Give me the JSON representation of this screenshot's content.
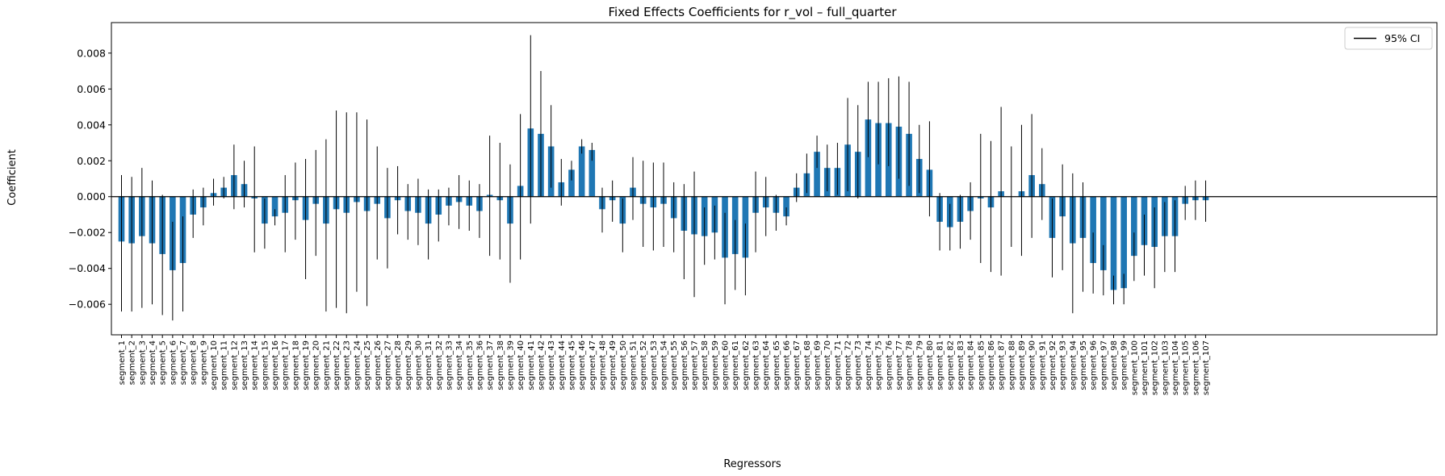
{
  "chart_data": {
    "type": "bar",
    "title": "Fixed Effects Coefficients for r_vol – full_quarter",
    "xlabel": "Regressors",
    "ylabel": "Coefficient",
    "ylim": [
      -0.0077,
      0.0097
    ],
    "yticks": [
      -0.006,
      -0.004,
      -0.002,
      0.0,
      0.002,
      0.004,
      0.006,
      0.008
    ],
    "ytick_labels": [
      "−0.006",
      "−0.004",
      "−0.002",
      "0.000",
      "0.002",
      "0.004",
      "0.006",
      "0.008"
    ],
    "grid": false,
    "zero_line": true,
    "legend": {
      "position": "top-right",
      "entries": [
        "95% CI"
      ]
    },
    "bar_color": "#1f77b4",
    "errorbar_color": "#000000",
    "categories": [
      "segment_1",
      "segment_2",
      "segment_3",
      "segment_4",
      "segment_5",
      "segment_6",
      "segment_7",
      "segment_8",
      "segment_9",
      "segment_10",
      "segment_11",
      "segment_12",
      "segment_13",
      "segment_14",
      "segment_15",
      "segment_16",
      "segment_17",
      "segment_18",
      "segment_19",
      "segment_20",
      "segment_21",
      "segment_22",
      "segment_23",
      "segment_24",
      "segment_25",
      "segment_26",
      "segment_27",
      "segment_28",
      "segment_29",
      "segment_30",
      "segment_31",
      "segment_32",
      "segment_33",
      "segment_34",
      "segment_35",
      "segment_36",
      "segment_37",
      "segment_38",
      "segment_39",
      "segment_40",
      "segment_41",
      "segment_42",
      "segment_43",
      "segment_44",
      "segment_45",
      "segment_46",
      "segment_47",
      "segment_48",
      "segment_49",
      "segment_50",
      "segment_51",
      "segment_52",
      "segment_53",
      "segment_54",
      "segment_55",
      "segment_56",
      "segment_57",
      "segment_58",
      "segment_59",
      "segment_60",
      "segment_61",
      "segment_62",
      "segment_63",
      "segment_64",
      "segment_65",
      "segment_66",
      "segment_67",
      "segment_68",
      "segment_69",
      "segment_70",
      "segment_71",
      "segment_72",
      "segment_73",
      "segment_74",
      "segment_75",
      "segment_76",
      "segment_77",
      "segment_78",
      "segment_79",
      "segment_80",
      "segment_81",
      "segment_82",
      "segment_83",
      "segment_84",
      "segment_85",
      "segment_86",
      "segment_87",
      "segment_88",
      "segment_89",
      "segment_90",
      "segment_91",
      "segment_92",
      "segment_93",
      "segment_94",
      "segment_95",
      "segment_96",
      "segment_97",
      "segment_98",
      "segment_99",
      "segment_100",
      "segment_101",
      "segment_102",
      "segment_103",
      "segment_104",
      "segment_105",
      "segment_106",
      "segment_107"
    ],
    "values": [
      -0.0025,
      -0.0026,
      -0.0022,
      -0.0026,
      -0.0032,
      -0.0041,
      -0.0037,
      -0.001,
      -0.0006,
      0.0002,
      0.0005,
      0.0012,
      0.0007,
      -0.0001,
      -0.0015,
      -0.0011,
      -0.0009,
      -0.0002,
      -0.0013,
      -0.0004,
      -0.0015,
      -0.0007,
      -0.0009,
      -0.0003,
      -0.0008,
      -0.0004,
      -0.0012,
      -0.0002,
      -0.0008,
      -0.0009,
      -0.0015,
      -0.001,
      -0.0005,
      -0.0003,
      -0.0005,
      -0.0008,
      0.0001,
      -0.0002,
      -0.0015,
      0.0006,
      0.0038,
      0.0035,
      0.0028,
      0.0008,
      0.0015,
      0.0028,
      0.0026,
      -0.0007,
      -0.0002,
      -0.0015,
      0.0005,
      -0.0004,
      -0.0006,
      -0.0004,
      -0.0012,
      -0.0019,
      -0.0021,
      -0.0022,
      -0.002,
      -0.0034,
      -0.0032,
      -0.0034,
      -0.0009,
      -0.0006,
      -0.0009,
      -0.0011,
      0.0005,
      0.0013,
      0.0025,
      0.0016,
      0.0016,
      0.0029,
      0.0025,
      0.0043,
      0.0041,
      0.0041,
      0.0039,
      0.0035,
      0.0021,
      0.0015,
      -0.0014,
      -0.0017,
      -0.0014,
      -0.0008,
      -0.0001,
      -0.0006,
      0.0003,
      0.0,
      0.0003,
      0.0012,
      0.0007,
      -0.0023,
      -0.0011,
      -0.0026,
      -0.0023,
      -0.0037,
      -0.0041,
      -0.0052,
      -0.0051,
      -0.0033,
      -0.0027,
      -0.0028,
      -0.0022,
      -0.0022,
      -0.0004,
      -0.0002,
      -0.0002
    ],
    "ci_low": [
      -0.0064,
      -0.0064,
      -0.0062,
      -0.006,
      -0.0066,
      -0.0069,
      -0.0064,
      -0.0023,
      -0.0016,
      -0.0005,
      -0.0001,
      -0.0007,
      -0.0006,
      -0.0031,
      -0.0029,
      -0.0016,
      -0.0031,
      -0.0024,
      -0.0046,
      -0.0033,
      -0.0064,
      -0.0062,
      -0.0065,
      -0.0053,
      -0.0061,
      -0.0035,
      -0.004,
      -0.0021,
      -0.0024,
      -0.0027,
      -0.0035,
      -0.0025,
      -0.0016,
      -0.0018,
      -0.0019,
      -0.0023,
      -0.0033,
      -0.0035,
      -0.0048,
      -0.0035,
      -0.0015,
      0.0,
      0.0005,
      -0.0005,
      0.0009,
      0.0024,
      0.002,
      -0.002,
      -0.0014,
      -0.0031,
      -0.0013,
      -0.0028,
      -0.003,
      -0.0028,
      -0.0031,
      -0.0046,
      -0.0056,
      -0.0038,
      -0.0035,
      -0.006,
      -0.0052,
      -0.0055,
      -0.0031,
      -0.0022,
      -0.0019,
      -0.0016,
      -0.0003,
      0.0002,
      0.0016,
      0.0003,
      0.0001,
      0.0003,
      -0.0001,
      0.0022,
      0.0018,
      0.0017,
      0.001,
      0.0006,
      0.0002,
      -0.0011,
      -0.003,
      -0.003,
      -0.0029,
      -0.0024,
      -0.0037,
      -0.0042,
      -0.0044,
      -0.0028,
      -0.0033,
      -0.0023,
      -0.0013,
      -0.0045,
      -0.0041,
      -0.0065,
      -0.0053,
      -0.0054,
      -0.0055,
      -0.006,
      -0.006,
      -0.0047,
      -0.0044,
      -0.0051,
      -0.0042,
      -0.0042,
      -0.0013,
      -0.0013,
      -0.0014
    ],
    "ci_high": [
      0.0012,
      0.0011,
      0.0016,
      0.0009,
      0.0001,
      -0.0014,
      -0.0011,
      0.0004,
      0.0005,
      0.001,
      0.0011,
      0.0029,
      0.002,
      0.0028,
      -0.0001,
      -0.0007,
      0.0012,
      0.0019,
      0.0021,
      0.0026,
      0.0032,
      0.0048,
      0.0047,
      0.0047,
      0.0043,
      0.0028,
      0.0016,
      0.0017,
      0.0007,
      0.001,
      0.0004,
      0.0004,
      0.0005,
      0.0012,
      0.0009,
      0.0007,
      0.0034,
      0.003,
      0.0018,
      0.0046,
      0.009,
      0.007,
      0.0051,
      0.0021,
      0.002,
      0.0032,
      0.003,
      0.0005,
      0.0009,
      -0.0001,
      0.0022,
      0.002,
      0.0019,
      0.0019,
      0.0008,
      0.0007,
      0.0014,
      -0.0006,
      -0.0005,
      -0.0009,
      -0.0013,
      -0.0015,
      0.0014,
      0.0011,
      0.0001,
      -0.0006,
      0.0013,
      0.0024,
      0.0034,
      0.0029,
      0.003,
      0.0055,
      0.0051,
      0.0064,
      0.0064,
      0.0066,
      0.0067,
      0.0064,
      0.004,
      0.0042,
      0.0002,
      -0.0004,
      0.0001,
      0.0008,
      0.0035,
      0.0031,
      0.005,
      0.0028,
      0.004,
      0.0046,
      0.0027,
      -0.0001,
      0.0018,
      0.0013,
      0.0008,
      -0.002,
      -0.0027,
      -0.0044,
      -0.0043,
      -0.002,
      -0.001,
      -0.0006,
      -0.0003,
      -0.0002,
      0.0006,
      0.0009,
      0.0009
    ]
  }
}
